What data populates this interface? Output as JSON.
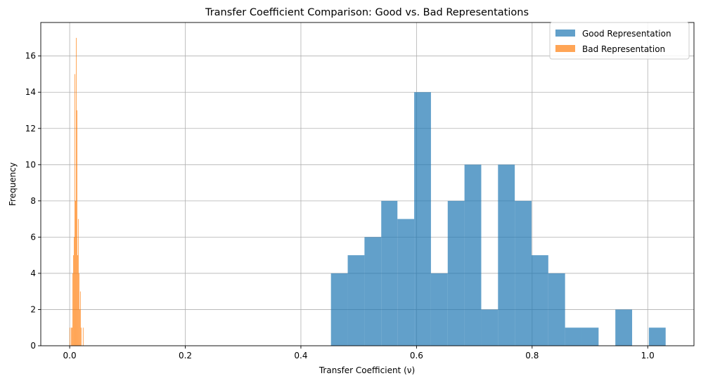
{
  "chart_data": {
    "type": "bar",
    "title": "Transfer Coefficient Comparison: Good vs. Bad Representations",
    "xlabel": "Transfer Coefficient (ν)",
    "ylabel": "Frequency",
    "xlim": [
      -0.05,
      1.08
    ],
    "ylim": [
      0,
      17.85
    ],
    "xticks": [
      0.0,
      0.2,
      0.4,
      0.6,
      0.8,
      1.0
    ],
    "xtick_labels": [
      "0.0",
      "0.2",
      "0.4",
      "0.6",
      "0.8",
      "1.0"
    ],
    "yticks": [
      0,
      2,
      4,
      6,
      8,
      10,
      12,
      14,
      16
    ],
    "ytick_labels": [
      "0",
      "2",
      "4",
      "6",
      "8",
      "10",
      "12",
      "14",
      "16"
    ],
    "grid": true,
    "legend_position": "top-right",
    "series": [
      {
        "name": "Good Representation",
        "color": "#1f77b4",
        "alpha": 0.7,
        "bins": [
          {
            "x0": 0.452,
            "x1": 0.481,
            "count": 4
          },
          {
            "x0": 0.481,
            "x1": 0.51,
            "count": 5
          },
          {
            "x0": 0.51,
            "x1": 0.539,
            "count": 6
          },
          {
            "x0": 0.539,
            "x1": 0.567,
            "count": 8
          },
          {
            "x0": 0.567,
            "x1": 0.596,
            "count": 7
          },
          {
            "x0": 0.596,
            "x1": 0.625,
            "count": 14
          },
          {
            "x0": 0.625,
            "x1": 0.654,
            "count": 4
          },
          {
            "x0": 0.654,
            "x1": 0.683,
            "count": 8
          },
          {
            "x0": 0.683,
            "x1": 0.712,
            "count": 10
          },
          {
            "x0": 0.712,
            "x1": 0.741,
            "count": 2
          },
          {
            "x0": 0.741,
            "x1": 0.77,
            "count": 10
          },
          {
            "x0": 0.77,
            "x1": 0.799,
            "count": 8
          },
          {
            "x0": 0.799,
            "x1": 0.828,
            "count": 5
          },
          {
            "x0": 0.828,
            "x1": 0.857,
            "count": 4
          },
          {
            "x0": 0.857,
            "x1": 0.886,
            "count": 1
          },
          {
            "x0": 0.886,
            "x1": 0.915,
            "count": 1
          },
          {
            "x0": 0.915,
            "x1": 0.944,
            "count": 0
          },
          {
            "x0": 0.944,
            "x1": 0.973,
            "count": 2
          },
          {
            "x0": 0.973,
            "x1": 1.002,
            "count": 0
          },
          {
            "x0": 1.002,
            "x1": 1.031,
            "count": 1
          }
        ]
      },
      {
        "name": "Bad Representation",
        "color": "#ff7f0e",
        "alpha": 0.7,
        "bins": [
          {
            "x0": 0.0,
            "x1": 0.0012,
            "count": 1
          },
          {
            "x0": 0.0012,
            "x1": 0.0024,
            "count": 0
          },
          {
            "x0": 0.0024,
            "x1": 0.0036,
            "count": 1
          },
          {
            "x0": 0.0036,
            "x1": 0.0048,
            "count": 1
          },
          {
            "x0": 0.0048,
            "x1": 0.006,
            "count": 4
          },
          {
            "x0": 0.006,
            "x1": 0.0072,
            "count": 5
          },
          {
            "x0": 0.0072,
            "x1": 0.0084,
            "count": 6
          },
          {
            "x0": 0.0084,
            "x1": 0.0096,
            "count": 15
          },
          {
            "x0": 0.0096,
            "x1": 0.0108,
            "count": 8
          },
          {
            "x0": 0.0108,
            "x1": 0.012,
            "count": 17
          },
          {
            "x0": 0.012,
            "x1": 0.0132,
            "count": 13
          },
          {
            "x0": 0.0132,
            "x1": 0.0144,
            "count": 5
          },
          {
            "x0": 0.0144,
            "x1": 0.0156,
            "count": 7
          },
          {
            "x0": 0.0156,
            "x1": 0.0168,
            "count": 4
          },
          {
            "x0": 0.0168,
            "x1": 0.018,
            "count": 2
          },
          {
            "x0": 0.018,
            "x1": 0.0192,
            "count": 3
          },
          {
            "x0": 0.0192,
            "x1": 0.0204,
            "count": 1
          },
          {
            "x0": 0.0204,
            "x1": 0.0216,
            "count": 0
          },
          {
            "x0": 0.0216,
            "x1": 0.0228,
            "count": 0
          },
          {
            "x0": 0.0228,
            "x1": 0.024,
            "count": 1
          }
        ]
      }
    ]
  }
}
